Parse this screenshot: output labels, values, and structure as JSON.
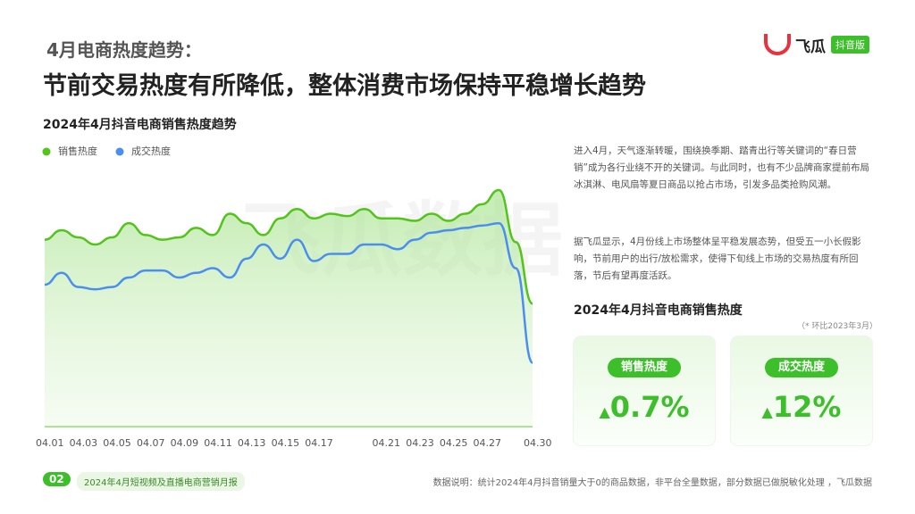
{
  "header": {
    "section": "4月电商热度趋势：",
    "headline": "节前交易热度有所降低，整体消费市场保持平稳增长趋势",
    "logo": "飞瓜",
    "logo_badge": "抖音版"
  },
  "chart_data": {
    "type": "line",
    "title": "2024年4月抖音电商销售热度趋势",
    "watermark": "飞瓜数据",
    "categories": [
      "04.01",
      null,
      "04.03",
      null,
      "04.05",
      null,
      "04.07",
      null,
      "04.09",
      null,
      "04.11",
      null,
      "04.13",
      null,
      "04.15",
      null,
      "04.17",
      null,
      null,
      null,
      "04.21",
      null,
      "04.23",
      null,
      "04.25",
      null,
      "04.27",
      null,
      null,
      "04.30"
    ],
    "series": [
      {
        "name": "销售热度",
        "color": "#52c41a",
        "values": [
          79,
          83,
          80,
          77,
          80,
          86,
          81,
          79,
          80,
          84,
          81,
          90,
          86,
          81,
          88,
          92,
          88,
          90,
          89,
          92,
          88,
          88,
          87,
          90,
          87,
          90,
          94,
          100,
          78,
          52
        ]
      },
      {
        "name": "成交热度",
        "color": "#4a8ef0",
        "values": [
          60,
          65,
          59,
          58,
          59,
          63,
          66,
          66,
          63,
          65,
          67,
          63,
          71,
          77,
          71,
          79,
          70,
          73,
          73,
          77,
          77,
          75,
          79,
          82,
          83,
          84,
          85,
          86,
          67,
          27
        ]
      }
    ]
  },
  "text": {
    "paragraphs": [
      "进入4月，天气逐渐转暖，围绕换季期、踏青出行等关键词的“春日营销”成为各行业绕不开的关键词。与此同时，也有不少品牌商家提前布局冰淇淋、电风扇等夏日商品以抢占市场，引发多品类抢购风潮。",
      "据飞瓜显示，4月份线上市场整体呈平稳发展态势，但受五一小长假影响，节前用户的出行/放松需求，使得下旬线上市场的交易热度有所回落，节后有望再度活跃。"
    ],
    "cards_title": "2024年4月抖音电商销售热度",
    "cards_note": "（* 环比2023年3月）",
    "cards": [
      {
        "label": "销售热度",
        "value": "0.7%"
      },
      {
        "label": "成交热度",
        "value": "12%"
      }
    ]
  },
  "footer": {
    "page": "02",
    "report": "2024年4月短视频及直播电商营销月报",
    "source": "数据说明：统计2024年4月抖音销量大于0的商品数据，非平台全量数据，部分数据已做脱敏化处理 ，飞瓜数据"
  }
}
